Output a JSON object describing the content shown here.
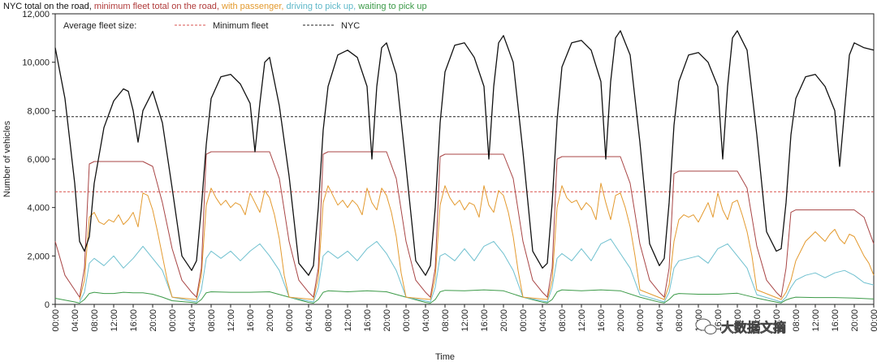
{
  "chart_data": {
    "type": "line",
    "title_segments": [
      {
        "text": "NYC total on the road, ",
        "color": "#111111"
      },
      {
        "text": "minimum fleet total on the road, ",
        "color": "#b03a3a"
      },
      {
        "text": "with passenger, ",
        "color": "#e39a2f"
      },
      {
        "text": "driving to pick up, ",
        "color": "#5fb8c9"
      },
      {
        "text": "waiting to pick up",
        "color": "#3c9a48"
      }
    ],
    "xlabel": "Time",
    "ylabel": "Number of vehicles",
    "ylim": [
      0,
      12000
    ],
    "yticks": [
      "0",
      "2,000",
      "4,000",
      "6,000",
      "8,000",
      "10,000",
      "12,000"
    ],
    "xticks": [
      "00:00",
      "04:00",
      "08:00",
      "12:00",
      "16:00",
      "20:00",
      "00:00",
      "04:00",
      "08:00",
      "12:00",
      "16:00",
      "20:00",
      "00:00",
      "04:00",
      "08:00",
      "12:00",
      "16:00",
      "20:00",
      "00:00",
      "04:00",
      "08:00",
      "12:00",
      "16:00",
      "20:00",
      "00:00",
      "04:00",
      "08:00",
      "12:00",
      "16:00",
      "20:00",
      "00:00",
      "04:00",
      "08:00",
      "12:00",
      "16:00",
      "20:00",
      "00:00",
      "04:00",
      "08:00",
      "12:00",
      "16:00",
      "20:00",
      "00:00"
    ],
    "x_range_hours": [
      0,
      168
    ],
    "legend": {
      "title": "Average fleet size:",
      "placement": "top-left",
      "entries": [
        {
          "label": "Minimum fleet",
          "color": "#d9534f"
        },
        {
          "label": "NYC",
          "color": "#222222"
        }
      ]
    },
    "average_lines": {
      "minimum_fleet": 4650,
      "nyc": 7750
    },
    "series": [
      {
        "key": "nyc_total",
        "color": "#111111",
        "x": [
          0,
          2,
          4,
          5,
          6,
          7,
          8,
          10,
          12,
          14,
          15,
          16,
          17,
          18,
          20,
          22,
          24,
          26,
          28,
          29,
          30,
          31,
          32,
          34,
          36,
          38,
          40,
          41,
          42,
          43,
          44,
          46,
          48,
          50,
          52,
          53,
          54,
          55,
          56,
          58,
          60,
          62,
          64,
          65,
          66,
          67,
          68,
          70,
          72,
          74,
          76,
          77,
          78,
          79,
          80,
          82,
          84,
          86,
          88,
          89,
          90,
          91,
          92,
          94,
          96,
          98,
          100,
          101,
          102,
          103,
          104,
          106,
          108,
          110,
          112,
          113,
          114,
          115,
          116,
          118,
          120,
          122,
          124,
          125,
          126,
          127,
          128,
          130,
          132,
          134,
          136,
          137,
          138,
          139,
          140,
          142,
          144,
          146,
          148,
          149,
          150,
          151,
          152,
          154,
          156,
          158,
          160,
          161,
          162,
          163,
          164,
          166,
          168
        ],
        "y": [
          10600,
          8500,
          5000,
          2600,
          2200,
          2800,
          5000,
          7300,
          8400,
          8900,
          8800,
          8000,
          6700,
          8000,
          8800,
          7500,
          4800,
          2000,
          1400,
          1800,
          4000,
          6600,
          8500,
          9400,
          9500,
          9100,
          8300,
          6300,
          8300,
          10000,
          10200,
          8200,
          5300,
          1700,
          1200,
          1600,
          4000,
          7200,
          9000,
          10300,
          10500,
          10200,
          9000,
          6000,
          9000,
          10600,
          10800,
          9500,
          5700,
          1800,
          1200,
          1600,
          4000,
          7500,
          9600,
          10700,
          10800,
          10200,
          9000,
          6000,
          9000,
          10800,
          11100,
          10000,
          6300,
          2200,
          1500,
          1700,
          4200,
          7600,
          9800,
          10800,
          10900,
          10500,
          9200,
          6000,
          9200,
          11000,
          11300,
          10300,
          6700,
          2500,
          1600,
          1900,
          4200,
          7400,
          9200,
          10300,
          10400,
          10000,
          9000,
          6000,
          9000,
          11000,
          11300,
          10500,
          7000,
          3000,
          2200,
          2300,
          4200,
          7000,
          8500,
          9400,
          9500,
          9000,
          8000,
          5700,
          8000,
          10300,
          10800,
          10600,
          10500
        ]
      },
      {
        "key": "minimum_fleet",
        "color": "#a84545",
        "x": [
          0,
          2,
          4,
          5,
          6,
          7,
          8,
          10,
          14,
          16,
          18,
          20,
          22,
          24,
          26,
          28,
          29,
          30,
          31,
          32,
          36,
          40,
          44,
          46,
          48,
          50,
          52,
          53,
          54,
          55,
          56,
          60,
          64,
          68,
          70,
          72,
          74,
          76,
          77,
          78,
          79,
          80,
          84,
          88,
          92,
          94,
          96,
          98,
          100,
          101,
          102,
          103,
          104,
          108,
          112,
          116,
          118,
          120,
          122,
          124,
          125,
          126,
          127,
          128,
          132,
          136,
          140,
          142,
          144,
          146,
          148,
          149,
          150,
          151,
          152,
          156,
          160,
          164,
          166,
          168
        ],
        "y": [
          2600,
          1200,
          600,
          300,
          1500,
          5800,
          5900,
          5900,
          5900,
          5900,
          5900,
          5700,
          4200,
          2300,
          1000,
          500,
          300,
          1500,
          6200,
          6300,
          6300,
          6300,
          6300,
          5200,
          2600,
          1000,
          500,
          300,
          1500,
          6200,
          6300,
          6300,
          6300,
          6300,
          5200,
          2600,
          1000,
          500,
          300,
          1500,
          6100,
          6200,
          6200,
          6200,
          6200,
          5200,
          2600,
          1000,
          500,
          300,
          1500,
          6000,
          6100,
          6100,
          6100,
          6100,
          5000,
          2500,
          1000,
          500,
          300,
          1500,
          5400,
          5500,
          5500,
          5500,
          5500,
          4800,
          2400,
          1000,
          500,
          300,
          1500,
          3800,
          3900,
          3900,
          3900,
          3900,
          3600,
          2500
        ]
      },
      {
        "key": "with_passenger",
        "color": "#e39a2f",
        "x": [
          5,
          6,
          7,
          8,
          9,
          10,
          11,
          12,
          13,
          14,
          15,
          16,
          17,
          18,
          19,
          20,
          21,
          22,
          23,
          24,
          29,
          30,
          31,
          32,
          33,
          34,
          35,
          36,
          37,
          38,
          39,
          40,
          41,
          42,
          43,
          44,
          45,
          46,
          47,
          48,
          53,
          54,
          55,
          56,
          57,
          58,
          59,
          60,
          61,
          62,
          63,
          64,
          65,
          66,
          67,
          68,
          69,
          70,
          71,
          72,
          77,
          78,
          79,
          80,
          81,
          82,
          83,
          84,
          85,
          86,
          87,
          88,
          89,
          90,
          91,
          92,
          93,
          94,
          95,
          96,
          101,
          102,
          103,
          104,
          105,
          106,
          107,
          108,
          109,
          110,
          111,
          112,
          113,
          114,
          115,
          116,
          117,
          118,
          119,
          120,
          125,
          126,
          127,
          128,
          129,
          130,
          131,
          132,
          133,
          134,
          135,
          136,
          137,
          138,
          139,
          140,
          141,
          142,
          143,
          144,
          149,
          150,
          151,
          152,
          153,
          154,
          155,
          156,
          157,
          158,
          159,
          160,
          161,
          162,
          163,
          164,
          165,
          166,
          167,
          168
        ],
        "y": [
          200,
          1000,
          3600,
          3800,
          3400,
          3300,
          3500,
          3400,
          3700,
          3300,
          3500,
          3800,
          3200,
          4600,
          4500,
          3900,
          3000,
          2000,
          1000,
          300,
          200,
          1200,
          4100,
          4800,
          4400,
          4100,
          4300,
          4000,
          4200,
          4100,
          3700,
          4600,
          4200,
          3800,
          4700,
          4400,
          3700,
          2700,
          1200,
          300,
          200,
          1100,
          4200,
          4900,
          4500,
          4100,
          4300,
          4000,
          4300,
          4100,
          3700,
          4800,
          4200,
          3900,
          4800,
          4500,
          3800,
          2800,
          1300,
          300,
          200,
          1100,
          4100,
          4900,
          4400,
          4100,
          4300,
          3900,
          4200,
          4100,
          3600,
          4900,
          4100,
          3800,
          4700,
          4500,
          3800,
          2800,
          1400,
          300,
          200,
          1000,
          4000,
          4900,
          4400,
          4200,
          4300,
          3900,
          4200,
          4000,
          3500,
          5000,
          4200,
          3500,
          4500,
          4600,
          4000,
          3200,
          2000,
          600,
          200,
          800,
          2600,
          3500,
          3700,
          3600,
          3700,
          3400,
          3800,
          4200,
          3600,
          4600,
          3900,
          3500,
          4200,
          4300,
          3700,
          3000,
          2000,
          600,
          200,
          500,
          1000,
          1800,
          2200,
          2600,
          2800,
          3000,
          2800,
          2600,
          2900,
          3100,
          2700,
          2500,
          2900,
          2800,
          2400,
          2000,
          1700,
          1200
        ]
      },
      {
        "key": "driving_to_pick_up",
        "color": "#6fc0cf",
        "x": [
          5,
          6,
          7,
          8,
          10,
          12,
          14,
          16,
          18,
          20,
          22,
          24,
          29,
          30,
          31,
          32,
          34,
          36,
          38,
          40,
          42,
          44,
          46,
          48,
          53,
          54,
          55,
          56,
          58,
          60,
          62,
          64,
          66,
          68,
          70,
          72,
          77,
          78,
          79,
          80,
          82,
          84,
          86,
          88,
          90,
          92,
          94,
          96,
          101,
          102,
          103,
          104,
          106,
          108,
          110,
          112,
          114,
          116,
          118,
          120,
          125,
          126,
          127,
          128,
          130,
          132,
          134,
          136,
          138,
          140,
          142,
          144,
          149,
          150,
          151,
          152,
          154,
          156,
          158,
          160,
          162,
          164,
          166,
          168
        ],
        "y": [
          100,
          500,
          1700,
          1900,
          1600,
          2000,
          1500,
          1900,
          2400,
          1900,
          1400,
          300,
          100,
          600,
          1900,
          2200,
          1900,
          2200,
          1800,
          2200,
          2500,
          2000,
          1400,
          300,
          100,
          700,
          2000,
          2200,
          1900,
          2200,
          1800,
          2300,
          2600,
          2100,
          1400,
          300,
          100,
          700,
          2000,
          2100,
          1800,
          2300,
          1800,
          2400,
          2600,
          2100,
          1400,
          300,
          100,
          700,
          1900,
          2100,
          1800,
          2300,
          1800,
          2500,
          2700,
          2100,
          1500,
          400,
          100,
          500,
          1500,
          1800,
          1900,
          2000,
          1700,
          2300,
          2500,
          2000,
          1500,
          400,
          100,
          300,
          700,
          1000,
          1200,
          1300,
          1100,
          1300,
          1400,
          1200,
          900,
          800
        ]
      },
      {
        "key": "waiting_to_pick_up",
        "color": "#3c9a48",
        "x": [
          0,
          4,
          5,
          6,
          7,
          8,
          10,
          12,
          14,
          16,
          18,
          20,
          22,
          24,
          28,
          29,
          30,
          31,
          32,
          36,
          40,
          44,
          48,
          52,
          53,
          54,
          55,
          56,
          60,
          64,
          68,
          72,
          76,
          77,
          78,
          79,
          80,
          84,
          88,
          92,
          96,
          100,
          101,
          102,
          103,
          104,
          108,
          112,
          116,
          120,
          124,
          125,
          126,
          127,
          128,
          132,
          136,
          140,
          144,
          148,
          149,
          150,
          151,
          152,
          156,
          160,
          164,
          168
        ],
        "y": [
          250,
          100,
          50,
          200,
          450,
          500,
          450,
          450,
          500,
          480,
          480,
          420,
          300,
          150,
          80,
          50,
          200,
          480,
          520,
          500,
          500,
          520,
          300,
          80,
          50,
          200,
          500,
          560,
          520,
          560,
          520,
          300,
          80,
          50,
          200,
          520,
          580,
          560,
          600,
          560,
          300,
          90,
          60,
          200,
          520,
          600,
          560,
          600,
          560,
          300,
          90,
          60,
          200,
          400,
          450,
          420,
          420,
          460,
          260,
          90,
          60,
          180,
          250,
          300,
          280,
          280,
          260,
          220
        ]
      }
    ]
  },
  "watermark": {
    "text": "大数据文摘",
    "icon": "wechat-bubble-icon"
  }
}
